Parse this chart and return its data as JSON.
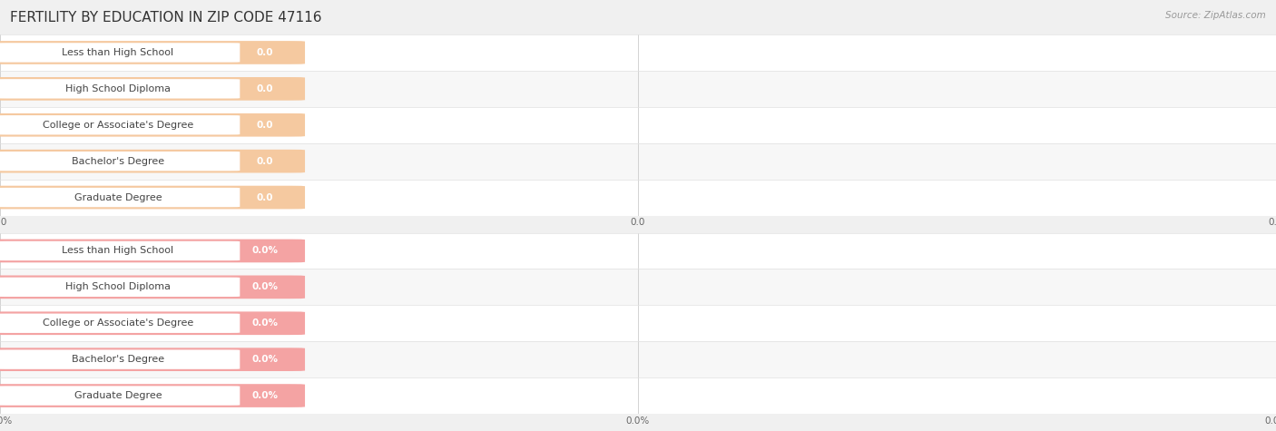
{
  "title": "FERTILITY BY EDUCATION IN ZIP CODE 47116",
  "source": "Source: ZipAtlas.com",
  "categories": [
    "Less than High School",
    "High School Diploma",
    "College or Associate's Degree",
    "Bachelor's Degree",
    "Graduate Degree"
  ],
  "top_values": [
    0.0,
    0.0,
    0.0,
    0.0,
    0.0
  ],
  "bottom_values": [
    0.0,
    0.0,
    0.0,
    0.0,
    0.0
  ],
  "top_bar_color": "#f5c9a0",
  "bottom_bar_color": "#f4a3a3",
  "top_value_suffix": "",
  "bottom_value_suffix": "%",
  "background_color": "#f0f0f0",
  "row_bg_even": "#ffffff",
  "row_bg_odd": "#f7f7f7",
  "separator_color": "#e0e0e0",
  "grid_color": "#cccccc",
  "title_fontsize": 11,
  "label_fontsize": 8,
  "value_fontsize": 7.5,
  "source_fontsize": 7.5,
  "title_color": "#333333",
  "label_color": "#444444",
  "source_color": "#999999"
}
